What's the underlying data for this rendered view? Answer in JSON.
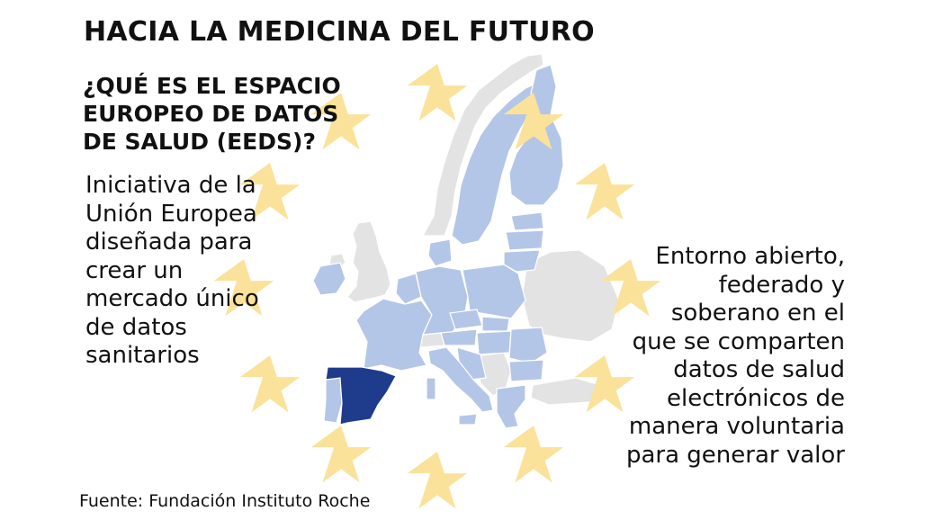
{
  "title": "HACIA LA MEDICINA DEL FUTURO",
  "subtitle_lines": [
    "¿QUÉ ES EL ESPACIO",
    "EUROPEO DE DATOS",
    "DE SALUD (EEDS)?"
  ],
  "left_text_lines": [
    "Iniciativa de la",
    "Unión Europea",
    "diseñada para",
    "crear un",
    "mercado único",
    "de datos",
    "sanitarios"
  ],
  "right_text_lines": [
    "Entorno abierto,",
    "federado y",
    "soberano en el",
    "que se comparten",
    "datos de salud",
    "electrónicos de",
    "manera voluntaria",
    "para generar valor"
  ],
  "source": "Fuente: Fundación Instituto Roche",
  "colors": {
    "eu_member": "#b4c6e7",
    "non_member": "#e3e3e3",
    "spain_highlight": "#1f3b8c",
    "star": "#fbe29a",
    "text": "#111111"
  },
  "icons": [
    "star-icon"
  ]
}
